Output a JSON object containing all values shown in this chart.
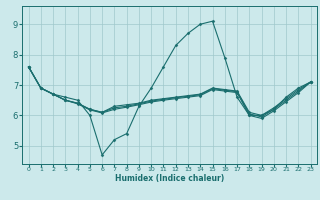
{
  "xlabel": "Humidex (Indice chaleur)",
  "bg_color": "#cce9eb",
  "grid_color": "#a0c8cc",
  "line_color": "#1a6e6e",
  "xlim": [
    -0.5,
    23.5
  ],
  "ylim": [
    4.4,
    9.6
  ],
  "xticks": [
    0,
    1,
    2,
    3,
    4,
    5,
    6,
    7,
    8,
    9,
    10,
    11,
    12,
    13,
    14,
    15,
    16,
    17,
    18,
    19,
    20,
    21,
    22,
    23
  ],
  "yticks": [
    5,
    6,
    7,
    8,
    9
  ],
  "lines": [
    [
      7.6,
      6.9,
      6.7,
      6.6,
      6.5,
      6.0,
      4.7,
      5.2,
      5.4,
      6.3,
      6.9,
      7.6,
      8.3,
      8.7,
      9.0,
      9.1,
      7.9,
      6.6,
      6.0,
      6.0,
      6.2,
      6.6,
      6.9,
      7.1
    ],
    [
      7.6,
      6.9,
      6.7,
      6.5,
      6.4,
      6.2,
      6.1,
      6.3,
      6.35,
      6.4,
      6.5,
      6.55,
      6.6,
      6.65,
      6.7,
      6.9,
      6.85,
      6.8,
      6.1,
      6.0,
      6.25,
      6.55,
      6.85,
      7.1
    ],
    [
      7.6,
      6.9,
      6.7,
      6.5,
      6.4,
      6.2,
      6.1,
      6.25,
      6.3,
      6.38,
      6.47,
      6.53,
      6.58,
      6.63,
      6.68,
      6.88,
      6.83,
      6.78,
      6.05,
      5.95,
      6.2,
      6.5,
      6.8,
      7.1
    ],
    [
      7.6,
      6.9,
      6.7,
      6.5,
      6.38,
      6.18,
      6.08,
      6.2,
      6.27,
      6.35,
      6.44,
      6.5,
      6.55,
      6.6,
      6.65,
      6.85,
      6.8,
      6.75,
      6.0,
      5.9,
      6.15,
      6.45,
      6.75,
      7.1
    ]
  ]
}
